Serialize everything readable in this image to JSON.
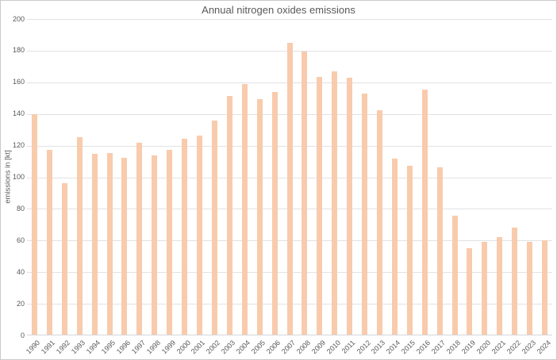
{
  "chart_data": {
    "type": "bar",
    "title": "Annual nitrogen oxides emissions",
    "xlabel": "",
    "ylabel": "emissions in [kt]",
    "ylim": [
      0,
      200
    ],
    "yticks": [
      0,
      20,
      40,
      60,
      80,
      100,
      120,
      140,
      160,
      180,
      200
    ],
    "grid": true,
    "legend": false,
    "categories": [
      "1990",
      "1991",
      "1992",
      "1993",
      "1994",
      "1995",
      "1996",
      "1997",
      "1998",
      "1999",
      "2000",
      "2001",
      "2002",
      "2003",
      "2004",
      "2005",
      "2006",
      "2007",
      "2008",
      "2009",
      "2010",
      "2011",
      "2012",
      "2013",
      "2014",
      "2015",
      "2016",
      "2017",
      "2018",
      "2019",
      "2020",
      "2021",
      "2022",
      "2023",
      "2024"
    ],
    "values": [
      139.5,
      117,
      95.5,
      125,
      114.5,
      115,
      112,
      121.5,
      113.5,
      117,
      124,
      126,
      135.5,
      151,
      158.5,
      149,
      153.5,
      184.5,
      179,
      163,
      166.5,
      162.5,
      152.5,
      142,
      111.5,
      107,
      155,
      106,
      75,
      54.5,
      58.5,
      61.5,
      67.5,
      58.5,
      59.5
    ],
    "colors": {
      "bar": "#f8cbad",
      "gridline": "#e2e2e2",
      "axis_line": "#d6d6d6",
      "text": "#595959",
      "border": "#c9c9c9",
      "background": "#ffffff"
    }
  }
}
